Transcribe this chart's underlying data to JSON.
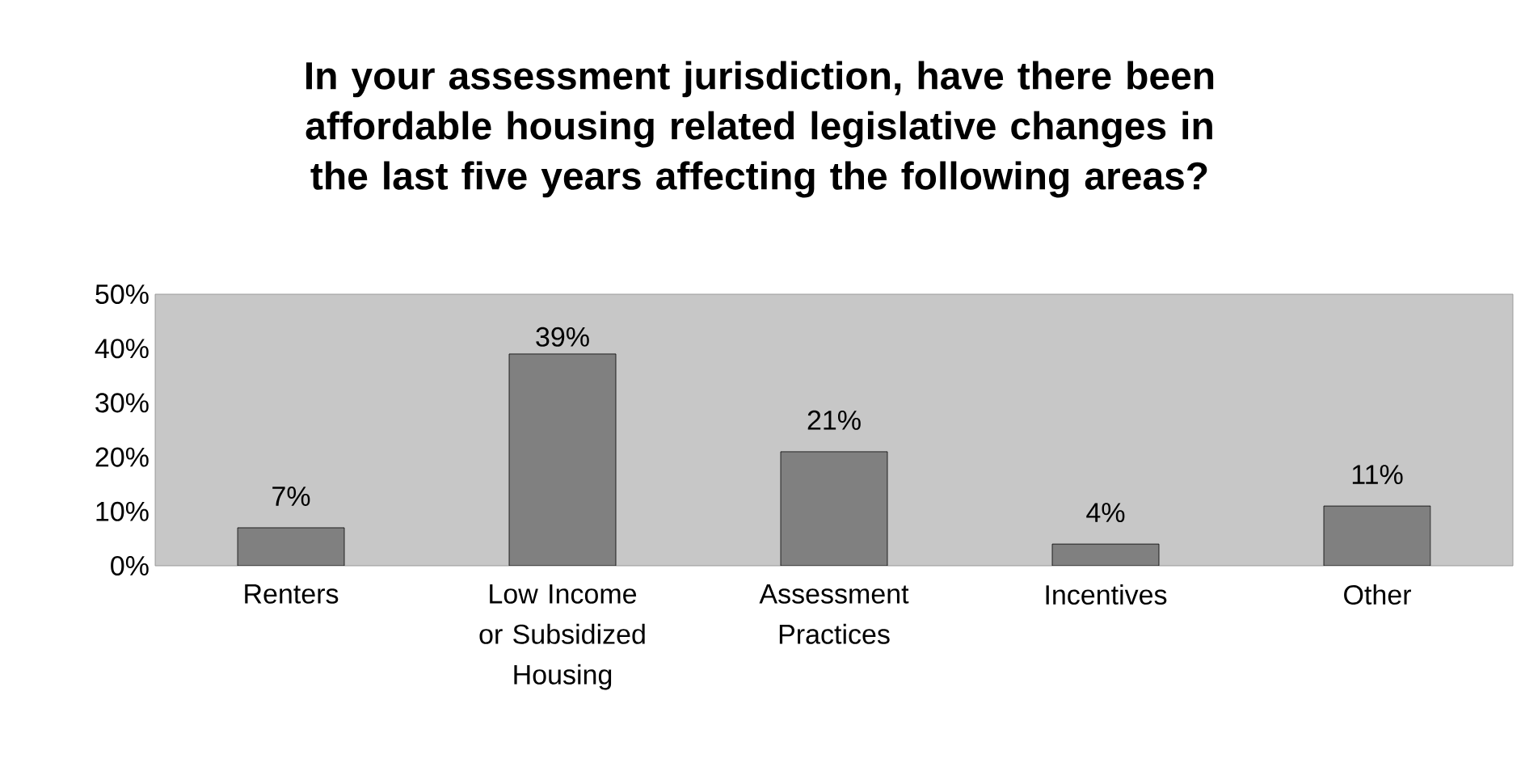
{
  "chart_data": {
    "type": "bar",
    "title": "In your assessment jurisdiction, have there been affordable housing related legislative changes in the last five years affecting the following areas?",
    "categories": [
      "Renters",
      "Low Income or Subsidized Housing",
      "Assessment Practices",
      "Incentives",
      "Other"
    ],
    "values": [
      7,
      39,
      21,
      4,
      11
    ],
    "color": "#808080",
    "value_labels": [
      "7%",
      "39%",
      "21%",
      "4%",
      "11%"
    ],
    "ylim": [
      0,
      50
    ],
    "yticks": [
      {
        "value": 0,
        "label": "0%"
      },
      {
        "value": 10,
        "label": "10%"
      },
      {
        "value": 20,
        "label": "20%"
      },
      {
        "value": 30,
        "label": "30%"
      },
      {
        "value": 40,
        "label": "40%"
      },
      {
        "value": 50,
        "label": "50%"
      }
    ],
    "grid": false
  }
}
